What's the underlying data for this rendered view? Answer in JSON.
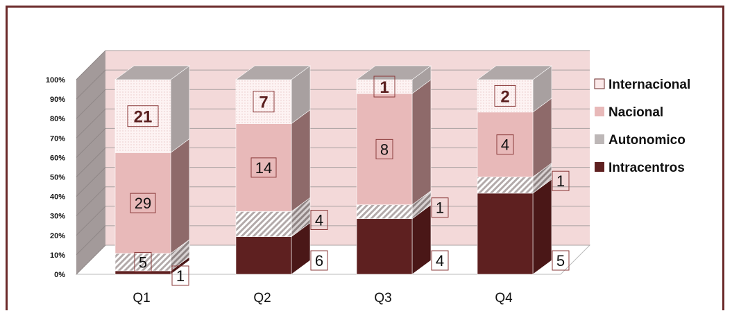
{
  "chart_data": {
    "type": "bar",
    "stacked": "percent",
    "categories": [
      "Q1",
      "Q2",
      "Q3",
      "Q4"
    ],
    "series": [
      {
        "name": "Intracentros",
        "values": [
          1,
          6,
          4,
          5
        ],
        "color": "#5e2020"
      },
      {
        "name": "Autonomico",
        "values": [
          5,
          4,
          1,
          1
        ],
        "color": "#bdb7b7"
      },
      {
        "name": "Nacional",
        "values": [
          29,
          14,
          8,
          4
        ],
        "color": "#e8b9b9"
      },
      {
        "name": "Internacional",
        "values": [
          21,
          7,
          1,
          2
        ],
        "color": "#fbe9e9"
      }
    ],
    "y_ticks": [
      "0%",
      "10%",
      "20%",
      "30%",
      "40%",
      "50%",
      "60%",
      "70%",
      "80%",
      "90%",
      "100%"
    ],
    "ylim": [
      0,
      100
    ],
    "grid": true,
    "legend": "right",
    "legend_entries": [
      "Internacional",
      "Nacional",
      "Autonomico",
      "Intracentros"
    ],
    "colors": {
      "frame": "#6b2a2a",
      "back_wall": "#f3d9d9",
      "side_wall": "#a39a9a",
      "floor": "#ffffff"
    }
  }
}
